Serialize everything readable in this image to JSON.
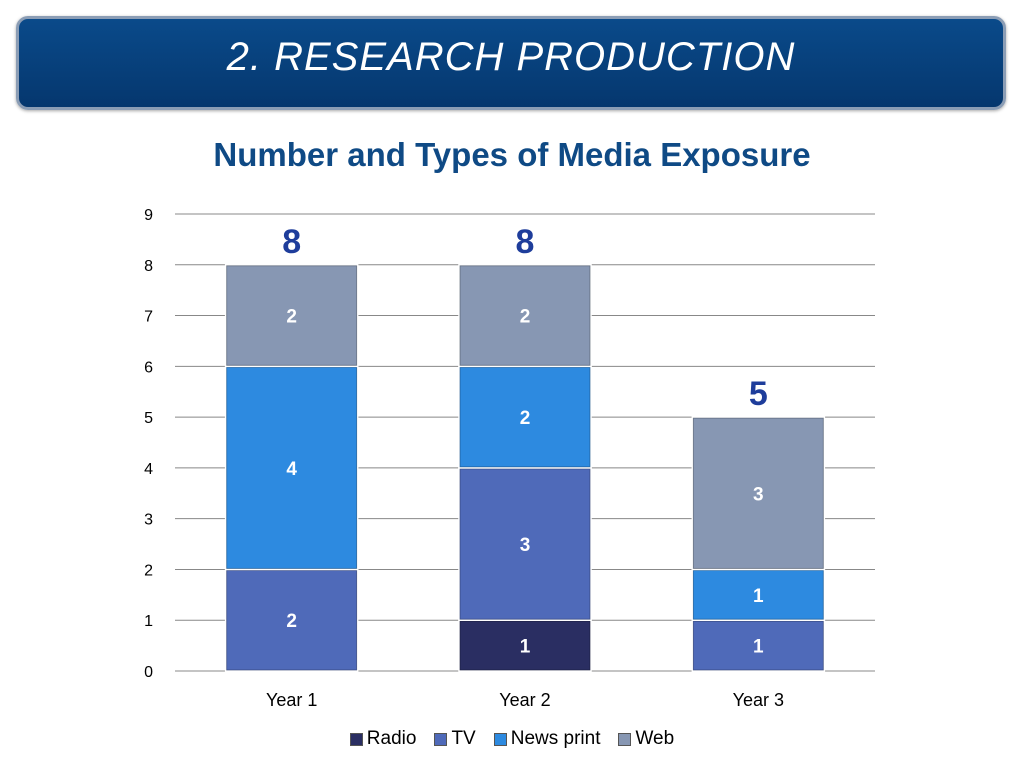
{
  "banner": {
    "title": "2. RESEARCH PRODUCTION"
  },
  "chart_data": {
    "type": "bar",
    "stacked": true,
    "title": "Number and Types of Media Exposure",
    "categories": [
      "Year 1",
      "Year 2",
      "Year 3"
    ],
    "series": [
      {
        "name": "Radio",
        "values": [
          0,
          1,
          0
        ],
        "color": "#2a2e62"
      },
      {
        "name": "TV",
        "values": [
          2,
          3,
          1
        ],
        "color": "#4f6ab9"
      },
      {
        "name": "News print",
        "values": [
          4,
          2,
          1
        ],
        "color": "#2d8ae0"
      },
      {
        "name": "Web",
        "values": [
          2,
          2,
          3
        ],
        "color": "#8797b3"
      }
    ],
    "totals": [
      "8",
      "8",
      "5"
    ],
    "y_ticks": [
      "0",
      "1",
      "2",
      "3",
      "4",
      "5",
      "6",
      "7",
      "8",
      "9"
    ],
    "ylim": [
      0,
      9
    ],
    "grid": true,
    "legend_position": "bottom",
    "total_label_color": "#1e3d9b"
  }
}
